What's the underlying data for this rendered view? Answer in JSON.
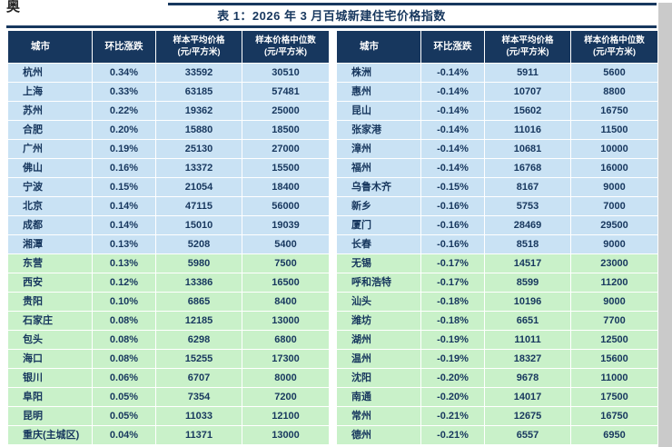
{
  "watermark": "奥",
  "title": "表 1：2026 年 3 月百城新建住宅价格指数",
  "columns": {
    "city": "城市",
    "change": "环比涨跌",
    "avg_line1": "样本平均价格",
    "avg_line2": "(元/平方米)",
    "median_line1": "样本价格中位数",
    "median_line2": "(元/平方米)"
  },
  "colors": {
    "header_bg": "#17375E",
    "title_text": "#17375E",
    "cell_text": "#17375E",
    "row_blue_bg": "#C9E2F4",
    "row_green_bg": "#C9F1C9"
  },
  "left_table": {
    "rows": [
      {
        "city": "杭州",
        "change": "0.34%",
        "avg": "33592",
        "median": "30510",
        "group": "blue"
      },
      {
        "city": "上海",
        "change": "0.33%",
        "avg": "63185",
        "median": "57481",
        "group": "blue"
      },
      {
        "city": "苏州",
        "change": "0.22%",
        "avg": "19362",
        "median": "25000",
        "group": "blue"
      },
      {
        "city": "合肥",
        "change": "0.20%",
        "avg": "15880",
        "median": "18500",
        "group": "blue"
      },
      {
        "city": "广州",
        "change": "0.19%",
        "avg": "25130",
        "median": "27000",
        "group": "blue"
      },
      {
        "city": "佛山",
        "change": "0.16%",
        "avg": "13372",
        "median": "15500",
        "group": "blue"
      },
      {
        "city": "宁波",
        "change": "0.15%",
        "avg": "21054",
        "median": "18400",
        "group": "blue"
      },
      {
        "city": "北京",
        "change": "0.14%",
        "avg": "47115",
        "median": "56000",
        "group": "blue"
      },
      {
        "city": "成都",
        "change": "0.14%",
        "avg": "15010",
        "median": "19039",
        "group": "blue"
      },
      {
        "city": "湘潭",
        "change": "0.13%",
        "avg": "5208",
        "median": "5400",
        "group": "blue"
      },
      {
        "city": "东营",
        "change": "0.13%",
        "avg": "5980",
        "median": "7500",
        "group": "green"
      },
      {
        "city": "西安",
        "change": "0.12%",
        "avg": "13386",
        "median": "16500",
        "group": "green"
      },
      {
        "city": "贵阳",
        "change": "0.10%",
        "avg": "6865",
        "median": "8400",
        "group": "green"
      },
      {
        "city": "石家庄",
        "change": "0.08%",
        "avg": "12185",
        "median": "13000",
        "group": "green"
      },
      {
        "city": "包头",
        "change": "0.08%",
        "avg": "6298",
        "median": "6800",
        "group": "green"
      },
      {
        "city": "海口",
        "change": "0.08%",
        "avg": "15255",
        "median": "17300",
        "group": "green"
      },
      {
        "city": "银川",
        "change": "0.06%",
        "avg": "6707",
        "median": "8000",
        "group": "green"
      },
      {
        "city": "阜阳",
        "change": "0.05%",
        "avg": "7354",
        "median": "7200",
        "group": "green"
      },
      {
        "city": "昆明",
        "change": "0.05%",
        "avg": "11033",
        "median": "12100",
        "group": "green"
      },
      {
        "city": "重庆(主城区)",
        "change": "0.04%",
        "avg": "11371",
        "median": "13000",
        "group": "green"
      }
    ]
  },
  "right_table": {
    "rows": [
      {
        "city": "株洲",
        "change": "-0.14%",
        "avg": "5911",
        "median": "5600",
        "group": "blue"
      },
      {
        "city": "惠州",
        "change": "-0.14%",
        "avg": "10707",
        "median": "8800",
        "group": "blue"
      },
      {
        "city": "昆山",
        "change": "-0.14%",
        "avg": "15602",
        "median": "16750",
        "group": "blue"
      },
      {
        "city": "张家港",
        "change": "-0.14%",
        "avg": "11016",
        "median": "11500",
        "group": "blue"
      },
      {
        "city": "漳州",
        "change": "-0.14%",
        "avg": "10681",
        "median": "10000",
        "group": "blue"
      },
      {
        "city": "福州",
        "change": "-0.14%",
        "avg": "16768",
        "median": "16000",
        "group": "blue"
      },
      {
        "city": "乌鲁木齐",
        "change": "-0.15%",
        "avg": "8167",
        "median": "9000",
        "group": "blue"
      },
      {
        "city": "新乡",
        "change": "-0.16%",
        "avg": "5753",
        "median": "7000",
        "group": "blue"
      },
      {
        "city": "厦门",
        "change": "-0.16%",
        "avg": "28469",
        "median": "29500",
        "group": "blue"
      },
      {
        "city": "长春",
        "change": "-0.16%",
        "avg": "8518",
        "median": "9000",
        "group": "blue"
      },
      {
        "city": "无锡",
        "change": "-0.17%",
        "avg": "14517",
        "median": "23000",
        "group": "green"
      },
      {
        "city": "呼和浩特",
        "change": "-0.17%",
        "avg": "8599",
        "median": "11200",
        "group": "green"
      },
      {
        "city": "汕头",
        "change": "-0.18%",
        "avg": "10196",
        "median": "9000",
        "group": "green"
      },
      {
        "city": "潍坊",
        "change": "-0.18%",
        "avg": "6651",
        "median": "7700",
        "group": "green"
      },
      {
        "city": "湖州",
        "change": "-0.19%",
        "avg": "11011",
        "median": "12500",
        "group": "green"
      },
      {
        "city": "温州",
        "change": "-0.19%",
        "avg": "18327",
        "median": "15600",
        "group": "green"
      },
      {
        "city": "沈阳",
        "change": "-0.20%",
        "avg": "9678",
        "median": "11000",
        "group": "green"
      },
      {
        "city": "南通",
        "change": "-0.20%",
        "avg": "14017",
        "median": "17500",
        "group": "green"
      },
      {
        "city": "常州",
        "change": "-0.21%",
        "avg": "12675",
        "median": "16750",
        "group": "green"
      },
      {
        "city": "德州",
        "change": "-0.21%",
        "avg": "6557",
        "median": "6950",
        "group": "green"
      }
    ]
  }
}
